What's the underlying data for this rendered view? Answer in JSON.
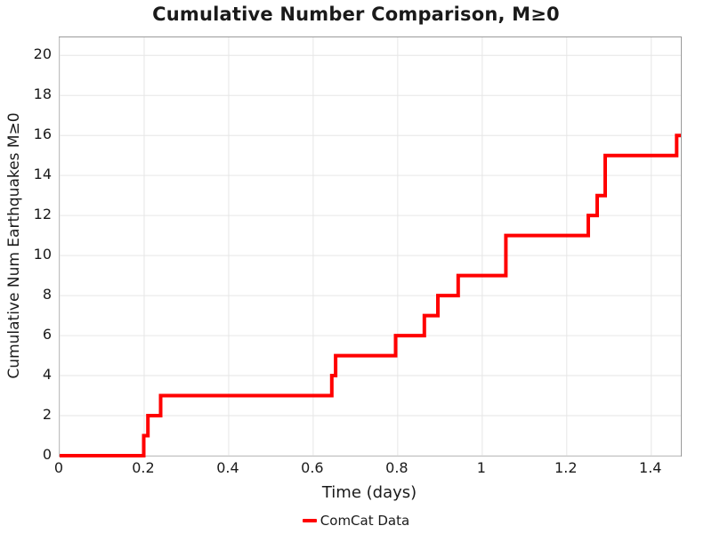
{
  "title": "Cumulative Number Comparison, M≥0",
  "chart_data": {
    "type": "line",
    "subtype": "cumulative-step",
    "title": "Cumulative Number Comparison, M≥0",
    "xlabel": "Time (days)",
    "ylabel": "Cumulative Num Earthquakes M≥0",
    "xlim": [
      0,
      1.47
    ],
    "ylim": [
      0,
      20.9
    ],
    "x_ticks": [
      0,
      0.2,
      0.4,
      0.6,
      0.8,
      1,
      1.2,
      1.4
    ],
    "x_tick_labels": [
      "0",
      "0.2",
      "0.4",
      "0.6",
      "0.8",
      "1",
      "1.2",
      "1.4"
    ],
    "y_ticks": [
      0,
      2,
      4,
      6,
      8,
      10,
      12,
      14,
      16,
      18,
      20
    ],
    "y_tick_labels": [
      "0",
      "2",
      "4",
      "6",
      "8",
      "10",
      "12",
      "14",
      "16",
      "18",
      "20"
    ],
    "grid": true,
    "legend_position": "bottom-center",
    "series": [
      {
        "name": "ComCat Data",
        "color": "#ff0000",
        "line_width": 4,
        "start": [
          0,
          0
        ],
        "step_points": [
          [
            0.199,
            1
          ],
          [
            0.209,
            2
          ],
          [
            0.239,
            3
          ],
          [
            0.644,
            4
          ],
          [
            0.653,
            5
          ],
          [
            0.795,
            6
          ],
          [
            0.863,
            7
          ],
          [
            0.895,
            8
          ],
          [
            0.943,
            9
          ],
          [
            1.056,
            11
          ],
          [
            1.251,
            12
          ],
          [
            1.272,
            13
          ],
          [
            1.291,
            15
          ],
          [
            1.46,
            16
          ]
        ],
        "end_x": 1.47
      }
    ]
  },
  "colors": {
    "line": "#ff0000",
    "grid": "#e6e6e6",
    "frame": "#9b9b9b",
    "text": "#1a1a1a",
    "background": "#ffffff"
  }
}
